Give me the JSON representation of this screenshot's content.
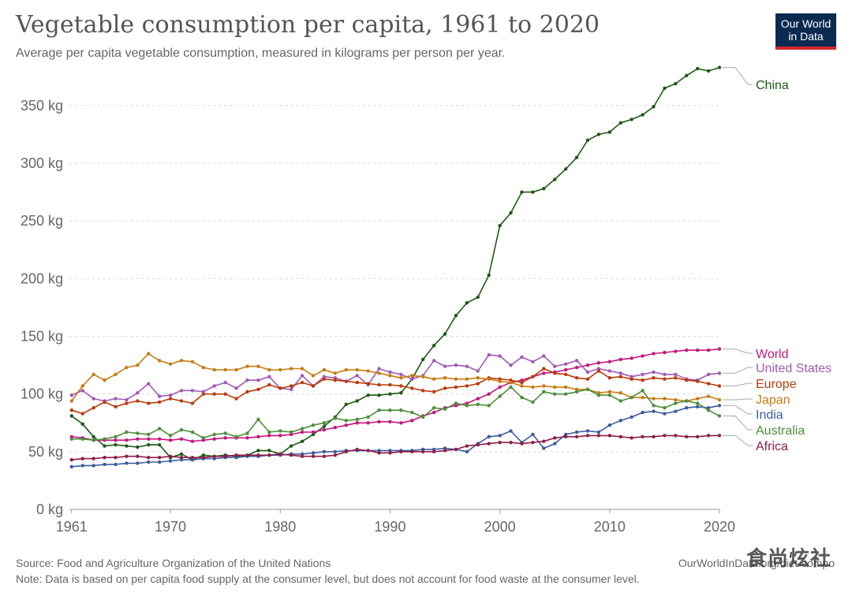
{
  "header": {
    "title": "Vegetable consumption per capita, 1961 to 2020",
    "subtitle": "Average per capita vegetable consumption, measured in kilograms per person per year."
  },
  "logo": {
    "line1": "Our World",
    "line2": "in Data"
  },
  "footer": {
    "source": "Source: Food and Agriculture Organization of the United Nations",
    "url": "OurWorldInData.org/diet-compo",
    "note": "Note: Data is based on per capita food supply at the consumer level, but does not account for food waste at the consumer level."
  },
  "watermark": "食尚炫社",
  "chart_data": {
    "type": "line",
    "x": [
      1961,
      1962,
      1963,
      1964,
      1965,
      1966,
      1967,
      1968,
      1969,
      1970,
      1971,
      1972,
      1973,
      1974,
      1975,
      1976,
      1977,
      1978,
      1979,
      1980,
      1981,
      1982,
      1983,
      1984,
      1985,
      1986,
      1987,
      1988,
      1989,
      1990,
      1991,
      1992,
      1993,
      1994,
      1995,
      1996,
      1997,
      1998,
      1999,
      2000,
      2001,
      2002,
      2003,
      2004,
      2005,
      2006,
      2007,
      2008,
      2009,
      2010,
      2011,
      2012,
      2013,
      2014,
      2015,
      2016,
      2017,
      2018,
      2019,
      2020
    ],
    "xlim": [
      1960.8,
      2020
    ],
    "ylim": [
      0,
      380
    ],
    "y_ticks": [
      0,
      50,
      100,
      150,
      200,
      250,
      300,
      350
    ],
    "y_tick_labels": [
      "0 kg",
      "50 kg",
      "100 kg",
      "150 kg",
      "200 kg",
      "250 kg",
      "300 kg",
      "350 kg"
    ],
    "x_ticks": [
      1961,
      1970,
      1980,
      1990,
      2000,
      2010,
      2020
    ],
    "x_tick_labels": [
      "1961",
      "1970",
      "1980",
      "1990",
      "2000",
      "2010",
      "2020"
    ],
    "grid": "horizontal-dashed",
    "legend": "right-end-labels",
    "series": [
      {
        "name": "China",
        "color": "#1e5a14",
        "values": [
          81,
          74,
          63,
          55,
          56,
          55,
          54,
          56,
          56,
          45,
          48,
          43,
          47,
          46,
          47,
          46,
          47,
          51,
          51,
          48,
          55,
          59,
          65,
          72,
          80,
          91,
          94,
          99,
          99,
          100,
          101,
          113,
          130,
          142,
          152,
          168,
          179,
          184,
          203,
          246,
          257,
          275,
          275,
          278,
          286,
          295,
          305,
          320,
          325,
          327,
          335,
          338,
          342,
          349,
          365,
          369,
          376,
          382,
          380,
          383
        ]
      },
      {
        "name": "World",
        "color": "#c2187b",
        "values": [
          63,
          62,
          60,
          60,
          60,
          60,
          61,
          61,
          61,
          60,
          61,
          59,
          60,
          61,
          62,
          62,
          62,
          63,
          64,
          64,
          65,
          67,
          67,
          69,
          71,
          73,
          75,
          75,
          76,
          76,
          75,
          77,
          81,
          84,
          88,
          90,
          92,
          96,
          100,
          106,
          110,
          112,
          115,
          118,
          119,
          121,
          123,
          125,
          127,
          128,
          130,
          131,
          133,
          135,
          136,
          137,
          138,
          138,
          138,
          139
        ]
      },
      {
        "name": "United States",
        "color": "#a259b5",
        "values": [
          99,
          103,
          96,
          94,
          96,
          95,
          101,
          109,
          98,
          99,
          103,
          103,
          102,
          107,
          110,
          105,
          112,
          112,
          115,
          105,
          104,
          116,
          107,
          115,
          114,
          111,
          116,
          108,
          122,
          119,
          117,
          113,
          116,
          129,
          124,
          125,
          124,
          120,
          134,
          133,
          125,
          132,
          128,
          133,
          124,
          126,
          129,
          119,
          122,
          120,
          118,
          115,
          117,
          119,
          117,
          117,
          113,
          112,
          117,
          118
        ]
      },
      {
        "name": "Europe",
        "color": "#b83b0b",
        "values": [
          86,
          83,
          88,
          93,
          89,
          92,
          94,
          92,
          93,
          96,
          94,
          92,
          100,
          100,
          100,
          96,
          102,
          104,
          108,
          105,
          107,
          110,
          107,
          113,
          112,
          111,
          110,
          109,
          108,
          108,
          107,
          105,
          103,
          102,
          105,
          106,
          107,
          109,
          114,
          113,
          112,
          110,
          115,
          122,
          118,
          117,
          114,
          113,
          120,
          114,
          115,
          113,
          112,
          114,
          113,
          114,
          112,
          111,
          109,
          107
        ]
      },
      {
        "name": "Japan",
        "color": "#c77b14",
        "values": [
          94,
          107,
          117,
          112,
          117,
          123,
          125,
          135,
          129,
          126,
          129,
          128,
          123,
          121,
          121,
          121,
          124,
          124,
          121,
          121,
          122,
          122,
          116,
          121,
          118,
          121,
          121,
          120,
          118,
          116,
          114,
          116,
          115,
          113,
          114,
          113,
          113,
          114,
          113,
          111,
          110,
          107,
          106,
          107,
          106,
          106,
          104,
          104,
          101,
          102,
          101,
          97,
          97,
          96,
          96,
          95,
          94,
          96,
          98,
          95
        ]
      },
      {
        "name": "India",
        "color": "#3c5c9c",
        "values": [
          37,
          38,
          38,
          39,
          39,
          40,
          40,
          41,
          41,
          42,
          43,
          43,
          44,
          44,
          45,
          45,
          46,
          46,
          47,
          47,
          48,
          48,
          49,
          50,
          50,
          51,
          51,
          51,
          51,
          51,
          51,
          51,
          52,
          52,
          53,
          52,
          50,
          57,
          63,
          64,
          68,
          58,
          65,
          53,
          57,
          65,
          67,
          68,
          67,
          73,
          77,
          80,
          84,
          85,
          83,
          85,
          88,
          89,
          88,
          90
        ]
      },
      {
        "name": "Australia",
        "color": "#4e8e3a",
        "values": [
          61,
          61,
          60,
          61,
          63,
          67,
          66,
          65,
          70,
          64,
          69,
          67,
          62,
          65,
          66,
          63,
          66,
          78,
          67,
          68,
          67,
          70,
          73,
          75,
          79,
          77,
          78,
          80,
          86,
          86,
          86,
          84,
          80,
          88,
          87,
          92,
          90,
          91,
          90,
          98,
          106,
          97,
          93,
          102,
          100,
          100,
          102,
          104,
          99,
          99,
          94,
          97,
          103,
          90,
          88,
          92,
          94,
          92,
          86,
          81
        ]
      },
      {
        "name": "Africa",
        "color": "#8e1f4a",
        "values": [
          43,
          44,
          44,
          45,
          45,
          46,
          46,
          45,
          45,
          46,
          45,
          45,
          45,
          46,
          46,
          47,
          47,
          47,
          47,
          48,
          47,
          46,
          46,
          46,
          47,
          50,
          52,
          51,
          49,
          49,
          50,
          50,
          50,
          50,
          51,
          52,
          55,
          56,
          57,
          58,
          58,
          57,
          58,
          59,
          62,
          63,
          63,
          64,
          64,
          64,
          63,
          62,
          63,
          63,
          64,
          64,
          63,
          63,
          64,
          64
        ]
      }
    ]
  }
}
